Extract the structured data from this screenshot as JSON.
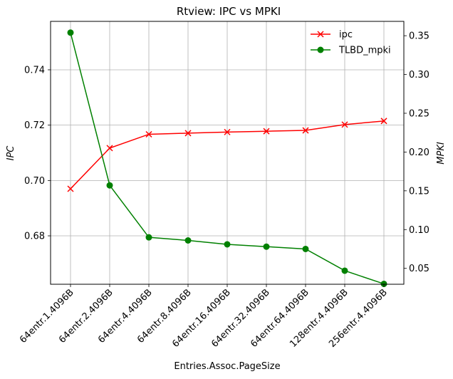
{
  "chart_data": {
    "type": "line",
    "title": "Rtview: IPC vs MPKI",
    "xlabel": "Entries.Assoc.PageSize",
    "ylabel_left": "IPC",
    "ylabel_right": "MPKI",
    "categories": [
      "64entr.1.4096B",
      "64entr.2.4096B",
      "64entr.4.4096B",
      "64entr.8.4096B",
      "64entr.16.4096B",
      "64entr.32.4096B",
      "64entr.64.4096B",
      "128entr.4.4096B",
      "256entr.4.4096B"
    ],
    "series": [
      {
        "name": "ipc",
        "axis": "left",
        "color": "#ff0000",
        "marker": "x",
        "values": [
          0.697,
          0.7117,
          0.7167,
          0.7171,
          0.7175,
          0.7178,
          0.7181,
          0.7202,
          0.7215
        ]
      },
      {
        "name": "TLBD_mpki",
        "axis": "right",
        "color": "#008000",
        "marker": "circle",
        "values": [
          0.354,
          0.157,
          0.09,
          0.086,
          0.081,
          0.078,
          0.075,
          0.047,
          0.03
        ]
      }
    ],
    "ylim_left": [
      0.6625,
      0.7575
    ],
    "ylim_right": [
      0.0295,
      0.3685
    ],
    "yticks_left": [
      "0.68",
      "0.70",
      "0.72",
      "0.74"
    ],
    "yticks_right": [
      "0.05",
      "0.10",
      "0.15",
      "0.20",
      "0.25",
      "0.30",
      "0.35"
    ],
    "grid": true,
    "legend_position": "top-right"
  }
}
